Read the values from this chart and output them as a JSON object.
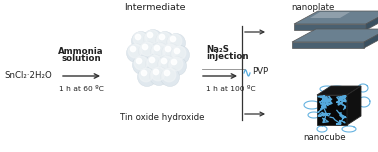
{
  "bg_color": "#ffffff",
  "snCl2_label": "SnCl₂·2H₂O",
  "ammonia_label1": "Ammonia",
  "ammonia_label2": "solution",
  "ammonia_cond": "1 h at 60 ºC",
  "intermediate_label": "Intermediate",
  "tin_label": "Tin oxide hydroxide",
  "na2s_label1": "Na₂S",
  "na2s_label2": "injection",
  "na2s_cond": "1 h at 100 ºC",
  "pvp_label": "PVP",
  "nanoplate_label": "nanoplate",
  "nanocube_label": "nanocube",
  "plate_color_top": "#6a8090",
  "plate_color_front": "#4a6070",
  "plate_color_right": "#3a5060",
  "cube_face_front": "#080808",
  "cube_face_top": "#151515",
  "cube_face_right": "#101010",
  "cube_line_color": "#55aadd",
  "arrow_color": "#333333",
  "text_color": "#222222",
  "font_size": 6.2,
  "font_size_small": 5.4,
  "font_size_intermediate": 6.8,
  "sphere_base": "#e0e8ee",
  "sphere_mid": "#f0f4f6",
  "sphere_highlight": "#ffffff"
}
